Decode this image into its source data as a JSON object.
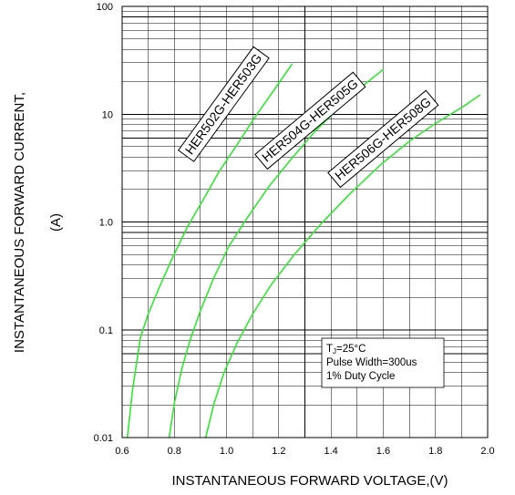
{
  "chart_data": {
    "type": "line",
    "title": "",
    "xlabel": "INSTANTANEOUS FORWARD VOLTAGE,(V)",
    "ylabel_line1": "INSTANTANEOUS FORWARD CURRENT,",
    "ylabel_line2": "(A)",
    "xlim": [
      0.6,
      2.0
    ],
    "ylim": [
      0.01,
      100
    ],
    "y_scale": "log",
    "grid": true,
    "x_ticks": [
      0.6,
      0.8,
      1.0,
      1.2,
      1.4,
      1.6,
      1.8,
      2.0
    ],
    "x_tick_labels": [
      "0.6",
      "0.8",
      "1.0",
      "1.2",
      "1.4",
      "1.6",
      "1.8",
      "2.0"
    ],
    "y_ticks": [
      0.01,
      0.1,
      1,
      10,
      100
    ],
    "y_tick_labels": [
      "0.01",
      "0.1",
      "1.0",
      "10",
      "100"
    ],
    "line_color": "#33e633",
    "series": [
      {
        "name": "HER502G-HER503G",
        "x": [
          0.62,
          0.64,
          0.67,
          0.7,
          0.74,
          0.79,
          0.85,
          0.91,
          0.97,
          1.04,
          1.11,
          1.18,
          1.25
        ],
        "y": [
          0.01,
          0.028,
          0.085,
          0.14,
          0.24,
          0.45,
          0.9,
          1.6,
          2.9,
          5.2,
          9.5,
          16.5,
          29
        ]
      },
      {
        "name": "HER504G-HER505G",
        "x": [
          0.78,
          0.8,
          0.83,
          0.86,
          0.9,
          0.95,
          1.01,
          1.08,
          1.16,
          1.25,
          1.34,
          1.44,
          1.53,
          1.6
        ],
        "y": [
          0.01,
          0.021,
          0.045,
          0.08,
          0.15,
          0.3,
          0.6,
          1.1,
          2.1,
          3.9,
          7,
          12,
          19,
          26
        ]
      },
      {
        "name": "HER506G-HER508G",
        "x": [
          0.92,
          0.95,
          0.99,
          1.04,
          1.1,
          1.17,
          1.26,
          1.36,
          1.47,
          1.59,
          1.7,
          1.8,
          1.9,
          1.97
        ],
        "y": [
          0.01,
          0.02,
          0.04,
          0.075,
          0.14,
          0.26,
          0.5,
          0.95,
          1.8,
          3.4,
          5.6,
          8.2,
          11.5,
          15
        ]
      }
    ],
    "labels": [
      "HER502G-HER503G",
      "HER504G-HER505G",
      "HER506G-HER508G"
    ],
    "conditions": {
      "line1_prefix": "T",
      "line1_sub": "J",
      "line1_suffix": "=25°C",
      "line2": "Pulse Width=300us",
      "line3": "1% Duty Cycle"
    }
  }
}
